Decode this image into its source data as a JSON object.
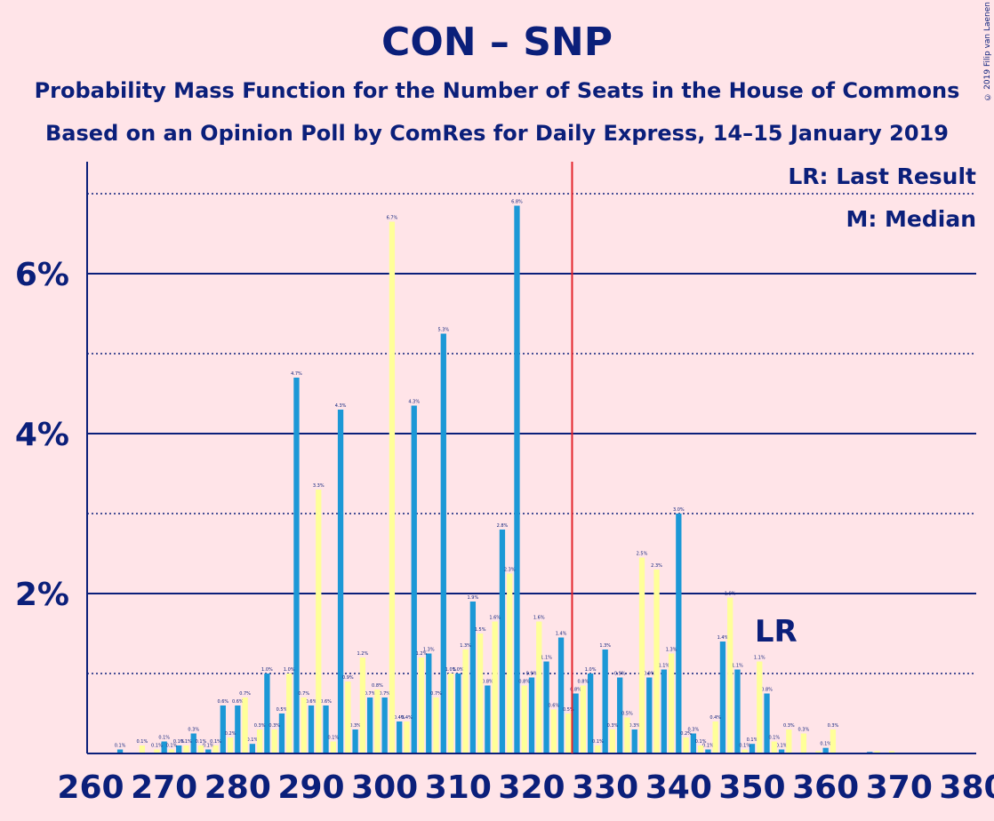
{
  "title": "CON – SNP",
  "subtitle1": "Probability Mass Function for the Number of Seats in the House of Commons",
  "subtitle2": "Based on an Opinion Poll by ComRes for Daily Express, 14–15 January 2019",
  "copyright": "© 2019 Filip van Laenen",
  "legend": {
    "last_result": "LR: Last Result",
    "median": "M: Median"
  },
  "colors": {
    "primary": "#1C98D6",
    "secondary": "#FFFF99",
    "text": "#0B1F7A",
    "median_line": "#E3242B",
    "background": "#FFE4E8"
  },
  "chart_data": {
    "type": "bar",
    "xlim": [
      260,
      380
    ],
    "ylim": [
      0,
      7.4
    ],
    "x_ticks": [
      260,
      270,
      280,
      290,
      300,
      310,
      320,
      330,
      340,
      350,
      360,
      370,
      380
    ],
    "y_ticks": [
      {
        "value": 2,
        "label": "2%"
      },
      {
        "value": 4,
        "label": "4%"
      },
      {
        "value": 6,
        "label": "6%"
      }
    ],
    "median_seats": 326,
    "last_result_seats": 353,
    "last_result_label": "LR",
    "series": [
      {
        "name": "",
        "color": "#1C98D6",
        "values": [
          [
            260,
            0.01
          ],
          [
            262,
            0.01
          ],
          [
            264,
            0.05
          ],
          [
            266,
            0.01
          ],
          [
            268,
            0.01
          ],
          [
            270,
            0.15
          ],
          [
            272,
            0.1
          ],
          [
            274,
            0.25
          ],
          [
            276,
            0.05
          ],
          [
            278,
            0.6
          ],
          [
            280,
            0.6
          ],
          [
            282,
            0.12
          ],
          [
            284,
            1.0
          ],
          [
            286,
            0.5
          ],
          [
            288,
            4.7
          ],
          [
            290,
            0.6
          ],
          [
            292,
            0.6
          ],
          [
            294,
            4.3
          ],
          [
            296,
            0.3
          ],
          [
            298,
            0.7
          ],
          [
            300,
            0.7
          ],
          [
            302,
            0.4
          ],
          [
            304,
            4.35
          ],
          [
            306,
            1.25
          ],
          [
            308,
            5.25
          ],
          [
            310,
            1.0
          ],
          [
            312,
            1.9
          ],
          [
            314,
            0.85
          ],
          [
            316,
            2.8
          ],
          [
            318,
            6.85
          ],
          [
            320,
            0.95
          ],
          [
            322,
            1.15
          ],
          [
            324,
            1.45
          ],
          [
            326,
            0.75
          ],
          [
            328,
            1.0
          ],
          [
            330,
            1.3
          ],
          [
            332,
            0.95
          ],
          [
            334,
            0.3
          ],
          [
            336,
            0.95
          ],
          [
            338,
            1.05
          ],
          [
            340,
            3.0
          ],
          [
            342,
            0.25
          ],
          [
            344,
            0.05
          ],
          [
            346,
            1.4
          ],
          [
            348,
            1.05
          ],
          [
            350,
            0.12
          ],
          [
            352,
            0.75
          ],
          [
            354,
            0.05
          ],
          [
            356,
            0.01
          ],
          [
            358,
            0.01
          ],
          [
            360,
            0.07
          ],
          [
            362,
            0.01
          ],
          [
            364,
            0.01
          ],
          [
            366,
            0.02
          ],
          [
            368,
            0.01
          ],
          [
            370,
            0.01
          ],
          [
            372,
            0.01
          ],
          [
            374,
            0.01
          ],
          [
            376,
            0.01
          ],
          [
            378,
            0.01
          ],
          [
            380,
            0.01
          ]
        ]
      },
      {
        "name": "",
        "color": "#FFFF99",
        "values": [
          [
            261,
            0.01
          ],
          [
            263,
            0.01
          ],
          [
            265,
            0.01
          ],
          [
            267,
            0.1
          ],
          [
            269,
            0.05
          ],
          [
            271,
            0.05
          ],
          [
            273,
            0.1
          ],
          [
            275,
            0.1
          ],
          [
            277,
            0.1
          ],
          [
            279,
            0.2
          ],
          [
            281,
            0.7
          ],
          [
            283,
            0.3
          ],
          [
            285,
            0.3
          ],
          [
            287,
            1.0
          ],
          [
            289,
            0.7
          ],
          [
            291,
            3.3
          ],
          [
            293,
            0.15
          ],
          [
            295,
            0.9
          ],
          [
            297,
            1.2
          ],
          [
            299,
            0.8
          ],
          [
            301,
            6.65
          ],
          [
            303,
            0.4
          ],
          [
            305,
            1.2
          ],
          [
            307,
            0.7
          ],
          [
            309,
            1.0
          ],
          [
            311,
            1.3
          ],
          [
            313,
            1.5
          ],
          [
            315,
            1.65
          ],
          [
            317,
            2.25
          ],
          [
            319,
            0.85
          ],
          [
            321,
            1.65
          ],
          [
            323,
            0.55
          ],
          [
            325,
            0.5
          ],
          [
            327,
            0.85
          ],
          [
            329,
            0.1
          ],
          [
            331,
            0.3
          ],
          [
            333,
            0.45
          ],
          [
            335,
            2.45
          ],
          [
            337,
            2.3
          ],
          [
            339,
            1.25
          ],
          [
            341,
            0.2
          ],
          [
            343,
            0.1
          ],
          [
            345,
            0.4
          ],
          [
            347,
            1.95
          ],
          [
            349,
            0.05
          ],
          [
            351,
            1.15
          ],
          [
            353,
            0.15
          ],
          [
            355,
            0.3
          ],
          [
            357,
            0.25
          ],
          [
            359,
            0.03
          ],
          [
            361,
            0.3
          ],
          [
            363,
            0.01
          ],
          [
            365,
            0.01
          ],
          [
            367,
            0.03
          ],
          [
            369,
            0.03
          ],
          [
            371,
            0.01
          ],
          [
            373,
            0.01
          ],
          [
            375,
            0.01
          ],
          [
            377,
            0.01
          ],
          [
            379,
            0.01
          ]
        ]
      }
    ]
  }
}
